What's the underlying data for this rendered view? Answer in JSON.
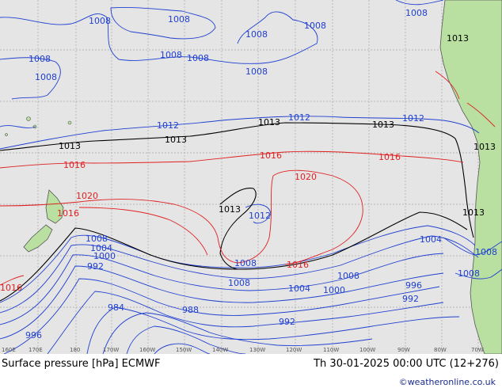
{
  "title": "Surface pressure [hPa] ECMWF",
  "valid_time": "Th 30-01-2025 00:00 UTC (12+276)",
  "credit": "©weatheronline.co.uk",
  "lon_ticks": [
    "160E",
    "170E",
    "180",
    "170W",
    "160W",
    "150W",
    "140W",
    "130W",
    "120W",
    "110W",
    "100W",
    "90W",
    "80W",
    "70W"
  ],
  "colors": {
    "ocean": "#e5e5e5",
    "land": "#b9e0a0",
    "grid": "#a8a8a8",
    "low": "#2040d0",
    "ref": "#000000",
    "high": "#e02020"
  },
  "labels": {
    "l1008a": "1008",
    "l1008b": "1008",
    "l1008c": "1008",
    "l1008d": "1008",
    "l1008e": "1008",
    "l1008f": "1008",
    "l1008g": "1008",
    "l1008h": "1008",
    "l1008i": "1008",
    "l1008j": "1008",
    "l1013a": "1013",
    "l1013b": "1013",
    "l1013c": "1013",
    "l1013d": "1013",
    "l1013e": "1013",
    "l1013f": "1013",
    "l1013g": "1013",
    "l1013h": "1013",
    "l1012a": "1012",
    "l1012b": "1012",
    "l1012c": "1012",
    "l1012d": "1012",
    "l1016a": "1016",
    "l1016b": "1016",
    "l1016c": "1016",
    "l1016d": "1016",
    "l1016e": "1016",
    "l1016f": "1016",
    "l1020a": "1020",
    "l1020b": "1020",
    "s1008a": "1008",
    "s1004a": "1004",
    "s1000a": "1000",
    "s992a": "992",
    "s1008b": "1008",
    "s1008c": "1008",
    "s1004b": "1004",
    "s1000b": "1000",
    "s996a": "996",
    "s992b": "992",
    "s988a": "988",
    "s984a": "984",
    "s992c": "992",
    "s996b": "996",
    "s1008d": "1008",
    "s1004c": "1004",
    "s1008e": "1008",
    "s1008f": "1008"
  }
}
